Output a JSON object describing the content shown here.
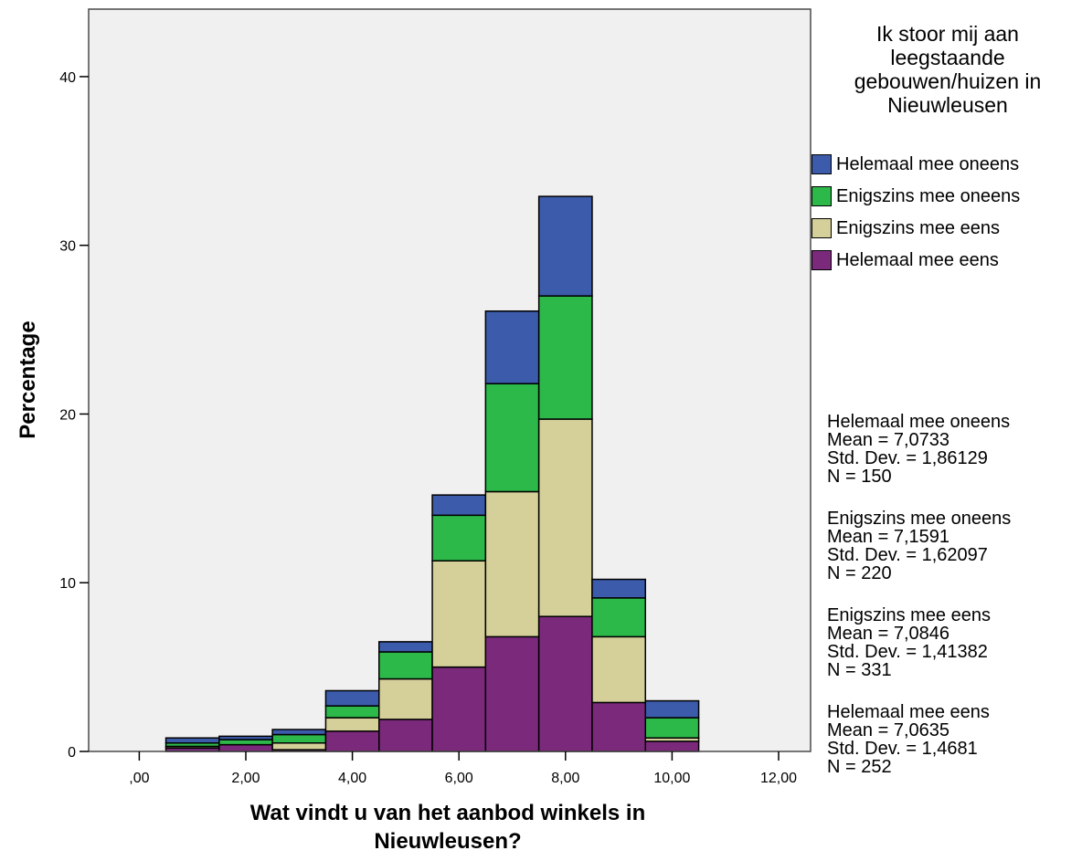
{
  "chart_data": {
    "type": "bar",
    "stacked": true,
    "xlabel": "Wat vindt u van het aanbod winkels in Nieuwleusen?",
    "ylabel": "Percentage",
    "xlim": [
      -0.95,
      12.6
    ],
    "ylim": [
      0,
      44
    ],
    "x_ticks": [
      ",00",
      "2,00",
      "4,00",
      "6,00",
      "8,00",
      "10,00",
      "12,00"
    ],
    "x_tick_values": [
      0,
      2,
      4,
      6,
      8,
      10,
      12
    ],
    "y_ticks": [
      "0",
      "10",
      "20",
      "30",
      "40"
    ],
    "y_tick_values": [
      0,
      10,
      20,
      30,
      40
    ],
    "bins": [
      [
        0.5,
        1.5
      ],
      [
        1.5,
        2.5
      ],
      [
        2.5,
        3.5
      ],
      [
        3.5,
        4.5
      ],
      [
        4.5,
        5.5
      ],
      [
        5.5,
        6.5
      ],
      [
        6.5,
        7.5
      ],
      [
        7.5,
        8.5
      ],
      [
        8.5,
        9.5
      ],
      [
        9.5,
        10.5
      ]
    ],
    "series": [
      {
        "name": "Helemaal mee eens",
        "color": "#7B2A7B",
        "values": [
          0.2,
          0.4,
          0.1,
          1.2,
          1.9,
          5.0,
          6.8,
          8.0,
          2.9,
          0.6
        ]
      },
      {
        "name": "Enigszins mee eens",
        "color": "#D5CF99",
        "values": [
          0.1,
          0.0,
          0.4,
          0.8,
          2.4,
          6.3,
          8.6,
          11.7,
          3.9,
          0.2
        ]
      },
      {
        "name": "Enigszins mee oneens",
        "color": "#2DB84A",
        "values": [
          0.2,
          0.3,
          0.5,
          0.7,
          1.6,
          2.7,
          6.4,
          7.3,
          2.3,
          1.2
        ]
      },
      {
        "name": "Helemaal mee oneens",
        "color": "#3C5BAB",
        "values": [
          0.3,
          0.2,
          0.3,
          0.9,
          0.6,
          1.2,
          4.3,
          5.9,
          1.1,
          1.0
        ]
      }
    ],
    "legend": {
      "title": "Ik stoor mij aan leegstaande gebouwen/huizen in Nieuwleusen",
      "title_lines": [
        "Ik stoor mij aan",
        "leegstaande",
        "gebouwen/huizen in",
        "Nieuwleusen"
      ],
      "placement": "right",
      "items": [
        {
          "label": "Helemaal mee oneens",
          "color": "#3C5BAB"
        },
        {
          "label": "Enigszins mee oneens",
          "color": "#2DB84A"
        },
        {
          "label": "Enigszins mee eens",
          "color": "#D5CF99"
        },
        {
          "label": "Helemaal mee eens",
          "color": "#7B2A7B"
        }
      ]
    },
    "stats": [
      {
        "group": "Helemaal mee oneens",
        "mean": "Mean = 7,0733",
        "std": "Std. Dev. = 1,86129",
        "n": "N = 150"
      },
      {
        "group": "Enigszins mee oneens",
        "mean": "Mean = 7,1591",
        "std": "Std. Dev. = 1,62097",
        "n": "N = 220"
      },
      {
        "group": "Enigszins mee eens",
        "mean": "Mean = 7,0846",
        "std": "Std. Dev. = 1,41382",
        "n": "N = 331"
      },
      {
        "group": "Helemaal mee eens",
        "mean": "Mean = 7,0635",
        "std": "Std. Dev. = 1,4681",
        "n": "N = 252"
      }
    ],
    "plot_background": "#F0F0F0",
    "grid": false
  }
}
